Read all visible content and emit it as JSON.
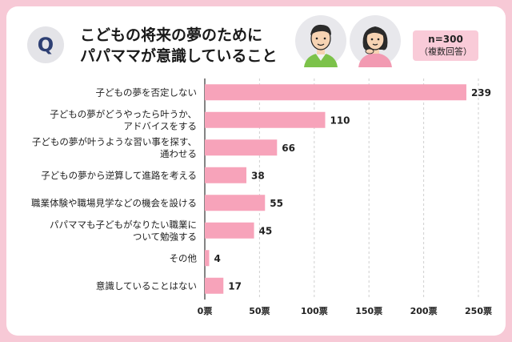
{
  "header": {
    "q_label": "Q",
    "title_lines": [
      "こどもの将来の夢のために",
      "パパママが意識していること"
    ],
    "sample": "n=300",
    "sample_note": "（複数回答）",
    "avatars": [
      "father-avatar-icon",
      "mother-avatar-icon"
    ]
  },
  "colors": {
    "bar": "#f7a3ba",
    "frame": "#f7c9d6",
    "badge_text": "#2d3f73"
  },
  "chart_data": {
    "type": "bar",
    "orientation": "horizontal",
    "categories": [
      [
        "子どもの夢を否定しない"
      ],
      [
        "子どもの夢がどうやったら叶うか、",
        "アドバイスをする"
      ],
      [
        "子どもの夢が叶うような習い事を探す、",
        "通わせる"
      ],
      [
        "子どもの夢から逆算して進路を考える"
      ],
      [
        "職業体験や職場見学などの機会を設ける"
      ],
      [
        "パパママも子どもがなりたい職業に",
        "ついて勉強する"
      ],
      [
        "その他"
      ],
      [
        "意識していることはない"
      ]
    ],
    "values": [
      239,
      110,
      66,
      38,
      55,
      45,
      4,
      17
    ],
    "xlim": [
      0,
      250
    ],
    "ticks": [
      0,
      50,
      100,
      150,
      200,
      250
    ],
    "tick_labels": [
      "0票",
      "50票",
      "100票",
      "150票",
      "200票",
      "250票"
    ],
    "grid": "vertical dashed"
  }
}
